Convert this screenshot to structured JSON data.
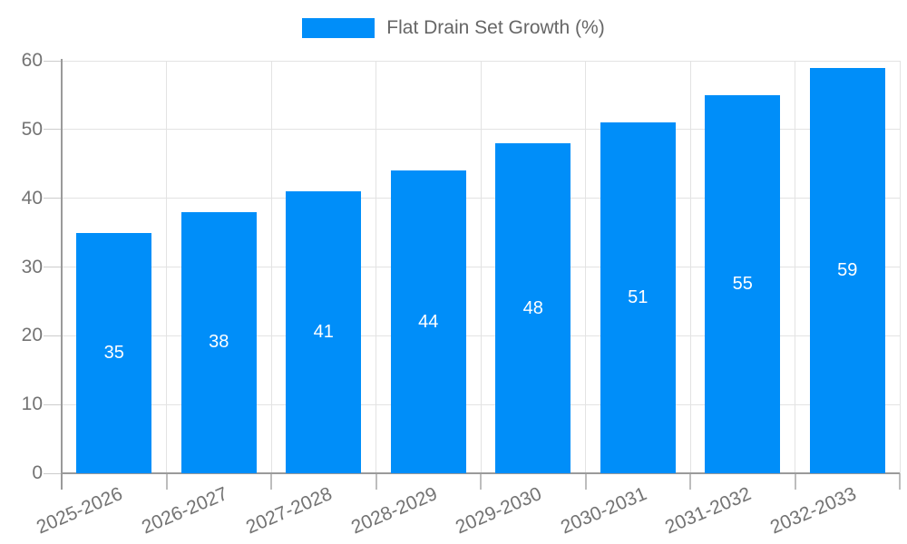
{
  "chart_data": {
    "type": "bar",
    "legend": "Flat Drain Set Growth (%)",
    "legend_position": "top-center",
    "categories": [
      "2025-2026",
      "2026-2027",
      "2027-2028",
      "2028-2029",
      "2029-2030",
      "2030-2031",
      "2031-2032",
      "2032-2033"
    ],
    "values": [
      35,
      38,
      41,
      44,
      48,
      51,
      55,
      59
    ],
    "value_labels_inside_bars": true,
    "xlabel": "",
    "ylabel": "",
    "ylim": [
      0,
      60
    ],
    "yticks": [
      0,
      10,
      20,
      30,
      40,
      50,
      60
    ],
    "grid": "on",
    "x_labels_rotated": true,
    "colors": {
      "bar": "#008ef9",
      "bar_value_text": "#ffffff",
      "axis_label_text": "#737373",
      "legend_text": "#666666",
      "gridline": "#e3e3e3",
      "axis_line": "#9a9a9a",
      "background": "#ffffff"
    }
  }
}
